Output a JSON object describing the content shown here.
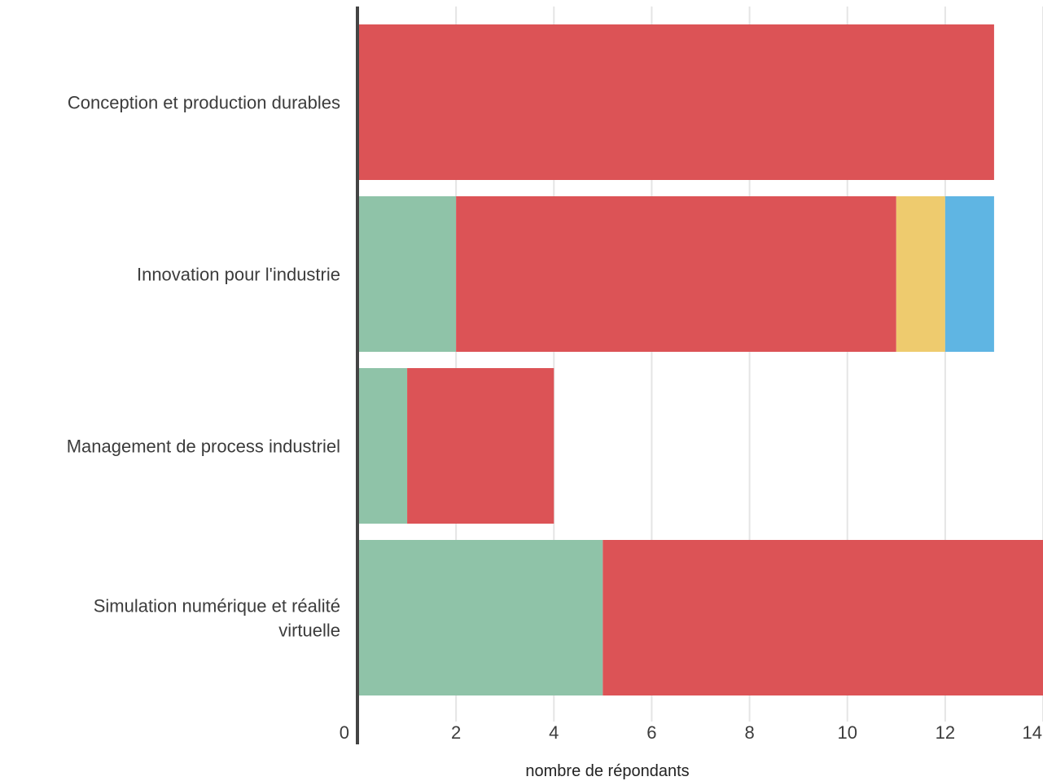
{
  "chart_data": {
    "type": "bar",
    "orientation": "horizontal",
    "stacked": true,
    "title": "",
    "xlabel": "nombre de répondants",
    "ylabel": "",
    "xlim": [
      0,
      14
    ],
    "x_ticks": [
      "0",
      "2",
      "4",
      "6",
      "8",
      "10",
      "12",
      "14"
    ],
    "grid": true,
    "legend": "none",
    "categories": [
      "Conception et production durables",
      "Innovation pour l'industrie",
      "Management de process industriel",
      "Simulation numérique et réalité virtuelle"
    ],
    "series": [
      {
        "color": "#8fc3a8",
        "values": [
          0,
          2,
          1,
          5
        ]
      },
      {
        "color": "#dc5356",
        "values": [
          13,
          9,
          3,
          9
        ]
      },
      {
        "color": "#eecb6e",
        "values": [
          0,
          1,
          0,
          0
        ]
      },
      {
        "color": "#5fb5e3",
        "values": [
          0,
          1,
          0,
          0
        ]
      }
    ],
    "colors": {
      "gridline": "#e5e5e5",
      "axis": "#444444",
      "text": "#3c3c3c"
    }
  }
}
